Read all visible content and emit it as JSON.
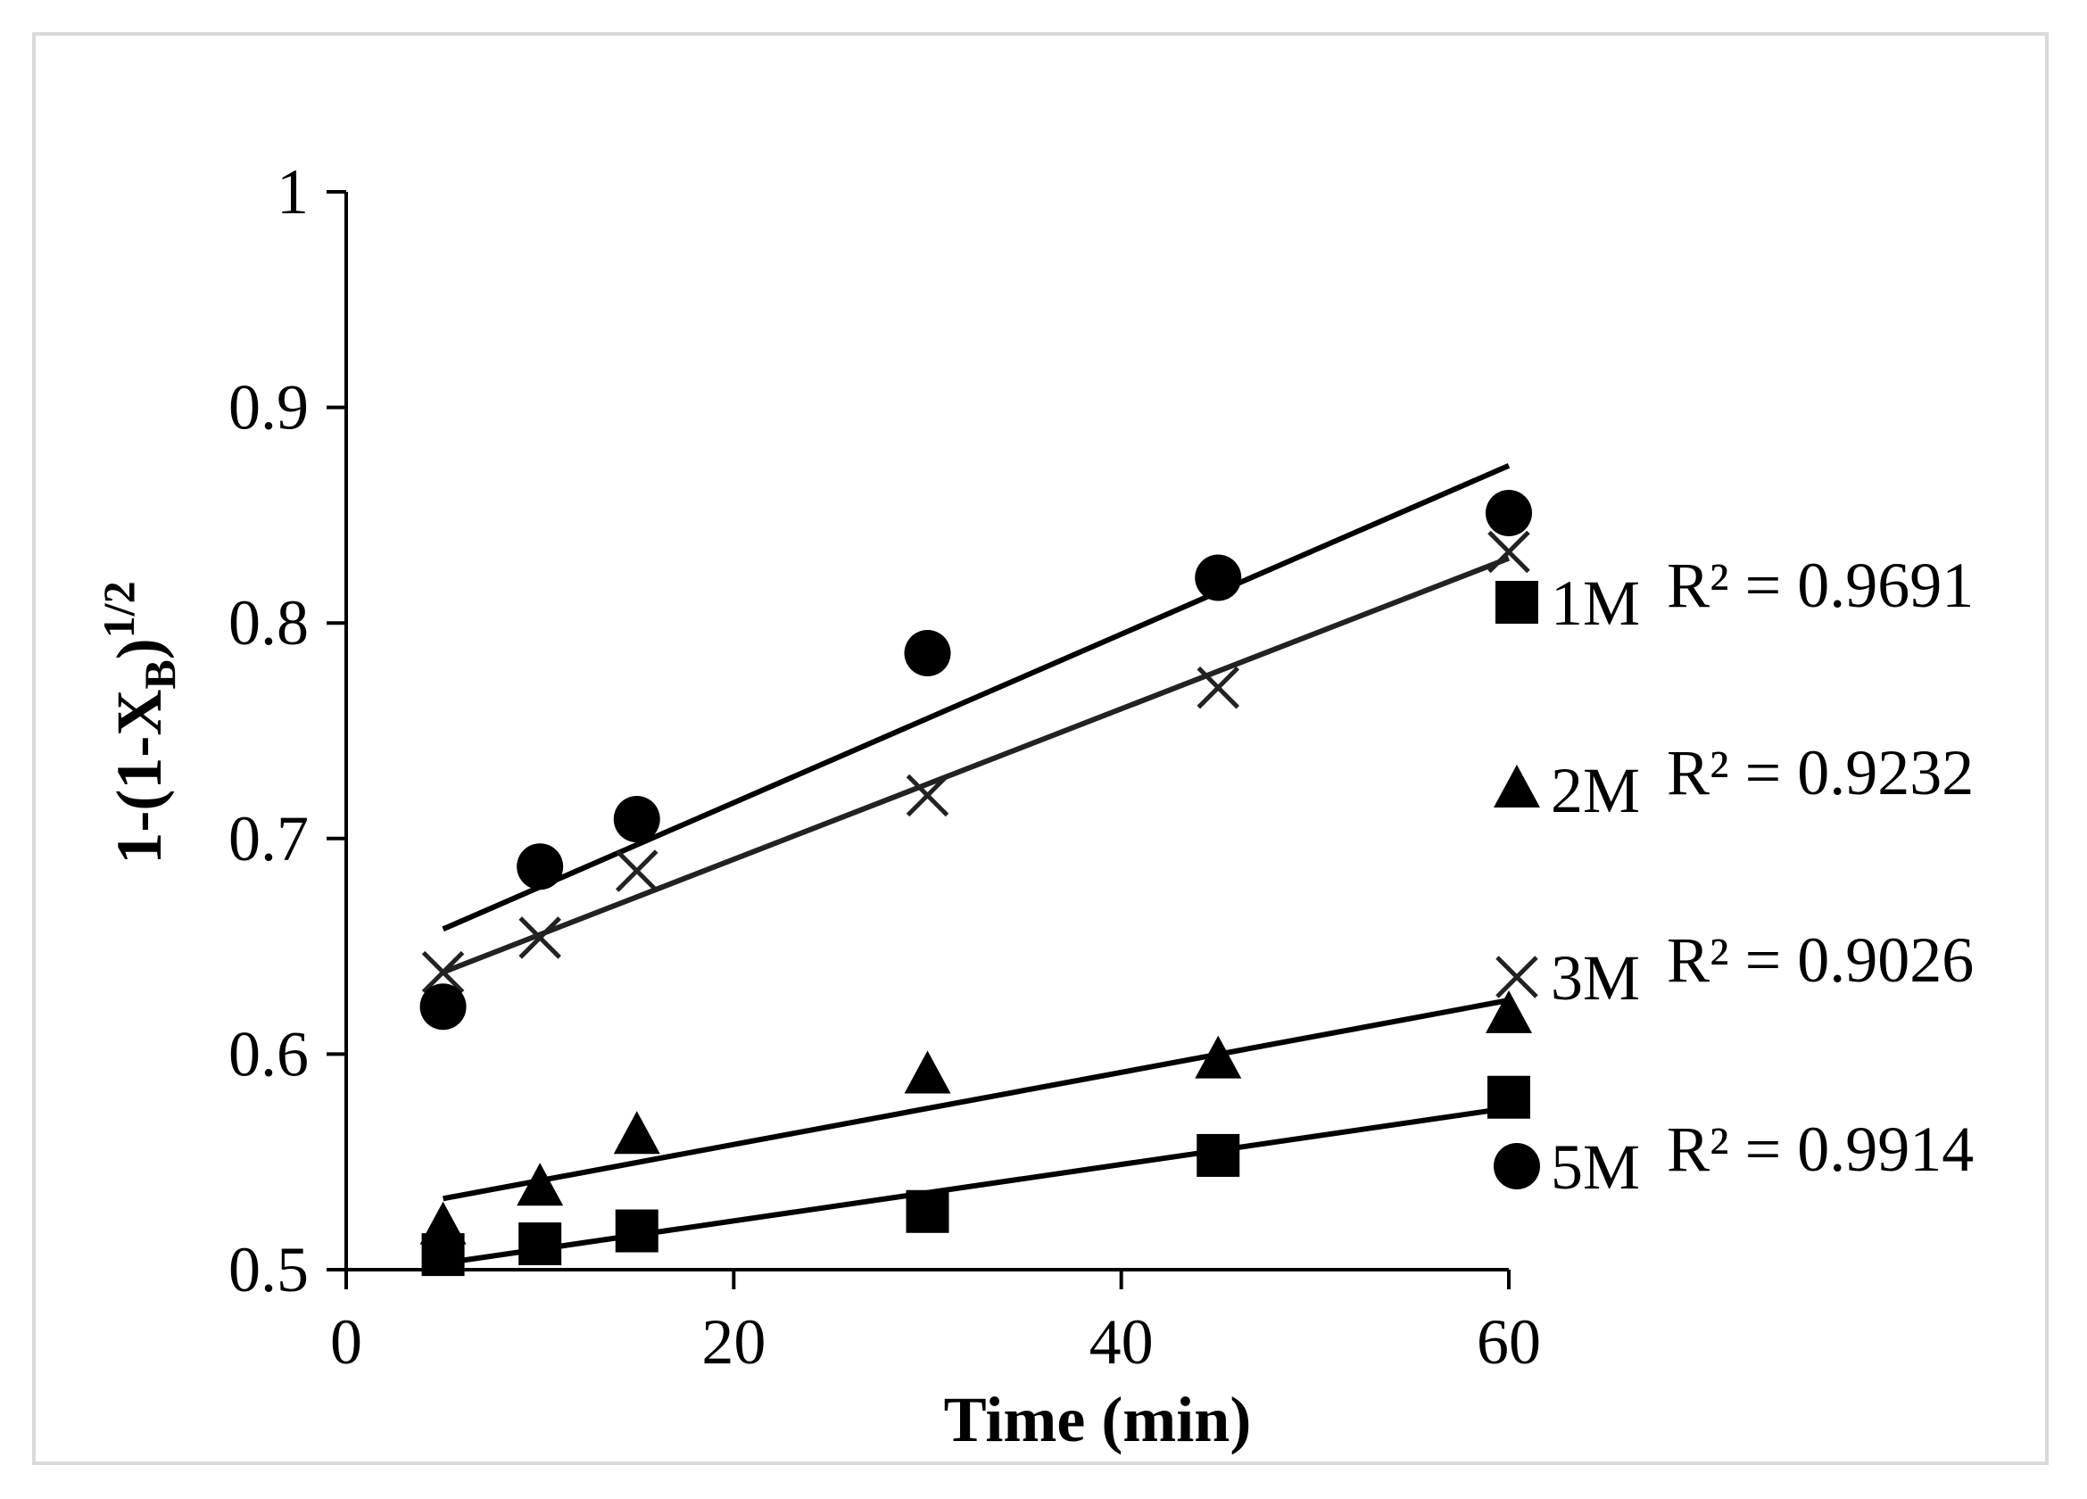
{
  "chart_data": {
    "type": "scatter",
    "xlabel": "Time (min)",
    "ylabel": {
      "base": "1-(1-X",
      "sub": "B",
      "close": ")",
      "sup": "1/2"
    },
    "xlim": [
      0,
      60
    ],
    "ylim": [
      0.5,
      1
    ],
    "x_ticks": [
      "0",
      "20",
      "40",
      "60"
    ],
    "y_ticks": [
      "0.5",
      "0.6",
      "0.7",
      "0.8",
      "0.9",
      "1"
    ],
    "grid": false,
    "legend_position": "right",
    "series": [
      {
        "name": "1M",
        "marker": "square",
        "r2_label": "R² = 0.9691",
        "x": [
          5,
          10,
          15,
          30,
          45,
          60
        ],
        "y": [
          0.507,
          0.512,
          0.518,
          0.527,
          0.553,
          0.58
        ],
        "trendline": {
          "x": [
            5,
            60
          ],
          "y": [
            0.503,
            0.575
          ]
        }
      },
      {
        "name": "2M",
        "marker": "triangle",
        "r2_label": "R² = 0.9232",
        "x": [
          5,
          10,
          15,
          30,
          45,
          60
        ],
        "y": [
          0.52,
          0.538,
          0.562,
          0.59,
          0.597,
          0.618
        ],
        "trendline": {
          "x": [
            5,
            60
          ],
          "y": [
            0.533,
            0.625
          ]
        }
      },
      {
        "name": "3M",
        "marker": "x",
        "r2_label": "R² = 0.9026",
        "x": [
          5,
          10,
          15,
          30,
          45,
          60
        ],
        "y": [
          0.638,
          0.654,
          0.685,
          0.72,
          0.77,
          0.833
        ],
        "trendline": {
          "x": [
            5,
            60
          ],
          "y": [
            0.638,
            0.83
          ]
        }
      },
      {
        "name": "5M",
        "marker": "circle",
        "r2_label": "R² = 0.9914",
        "x": [
          5,
          10,
          15,
          30,
          45,
          60
        ],
        "y": [
          0.622,
          0.687,
          0.709,
          0.786,
          0.821,
          0.851
        ],
        "trendline": {
          "x": [
            5,
            60
          ],
          "y": [
            0.658,
            0.873
          ]
        }
      }
    ]
  }
}
